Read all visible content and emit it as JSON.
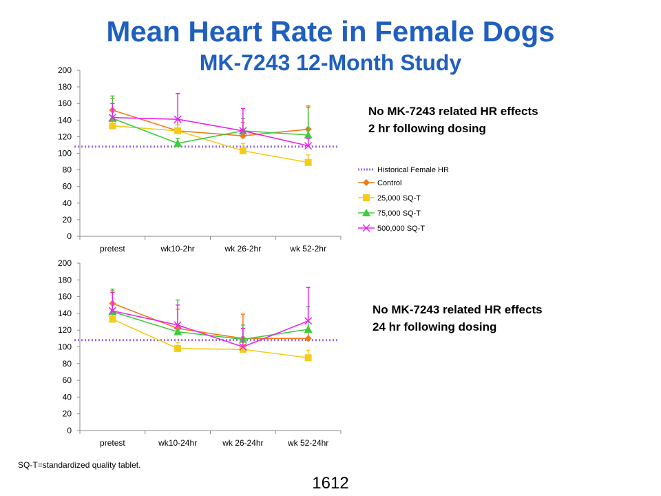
{
  "title": "Mean Heart Rate in Female Dogs",
  "subtitle": "MK-7243 12-Month Study",
  "notes": [
    {
      "line1": "No MK-7243 related HR effects",
      "line2": "2 hr following  dosing"
    },
    {
      "line1": "No MK-7243 related HR effects",
      "line2": "24 hr following  dosing"
    }
  ],
  "footnote": "SQ-T=standardized quality tablet.",
  "page_number": "1612",
  "legend": [
    {
      "label": "Historical Female HR",
      "color": "#9966ee",
      "style": "dotted",
      "marker": "none"
    },
    {
      "label": "Control",
      "color": "#f07a1a",
      "style": "solid",
      "marker": "diamond"
    },
    {
      "label": "25,000 SQ-T",
      "color": "#f5cc1a",
      "style": "solid",
      "marker": "square"
    },
    {
      "label": "75,000 SQ-T",
      "color": "#3ecb3e",
      "style": "solid",
      "marker": "triangle"
    },
    {
      "label": "500,000 SQ-T",
      "color": "#ee22ee",
      "style": "solid",
      "marker": "x"
    }
  ],
  "chart_data": [
    {
      "type": "line",
      "categories": [
        "pretest",
        "wk10-2hr",
        "wk 26-2hr",
        "wk 52-2hr"
      ],
      "ylim": [
        0,
        200
      ],
      "yticks": [
        0,
        20,
        40,
        60,
        80,
        100,
        120,
        140,
        160,
        180,
        200
      ],
      "reference_line": {
        "name": "Historical Female HR",
        "value": 108
      },
      "series": [
        {
          "name": "Control",
          "values": [
            152,
            127,
            121,
            129
          ],
          "err_upper": [
            166,
            140,
            137,
            157
          ]
        },
        {
          "name": "25,000 SQ-T",
          "values": [
            133,
            127,
            103,
            89
          ],
          "err_upper": [
            145,
            134,
            112,
            98
          ]
        },
        {
          "name": "75,000 SQ-T",
          "values": [
            142,
            112,
            127,
            122
          ],
          "err_upper": [
            169,
            118,
            142,
            155
          ]
        },
        {
          "name": "500,000 SQ-T",
          "values": [
            143,
            141,
            127,
            109
          ],
          "err_upper": [
            160,
            172,
            154,
            118
          ]
        }
      ]
    },
    {
      "type": "line",
      "categories": [
        "pretest",
        "wk10-24hr",
        "wk 26-24hr",
        "wk 52-24hr"
      ],
      "ylim": [
        0,
        200
      ],
      "yticks": [
        0,
        20,
        40,
        60,
        80,
        100,
        120,
        140,
        160,
        180,
        200
      ],
      "reference_line": {
        "name": "Historical Female HR",
        "value": 108
      },
      "series": [
        {
          "name": "Control",
          "values": [
            152,
            122,
            110,
            110
          ],
          "err_upper": [
            167,
            145,
            139,
            118
          ]
        },
        {
          "name": "25,000 SQ-T",
          "values": [
            133,
            98,
            97,
            87
          ],
          "err_upper": [
            142,
            105,
            103,
            96
          ]
        },
        {
          "name": "75,000 SQ-T",
          "values": [
            142,
            118,
            109,
            121
          ],
          "err_upper": [
            169,
            156,
            126,
            148
          ]
        },
        {
          "name": "500,000 SQ-T",
          "values": [
            143,
            126,
            100,
            131
          ],
          "err_upper": [
            165,
            150,
            122,
            171
          ]
        }
      ]
    }
  ]
}
